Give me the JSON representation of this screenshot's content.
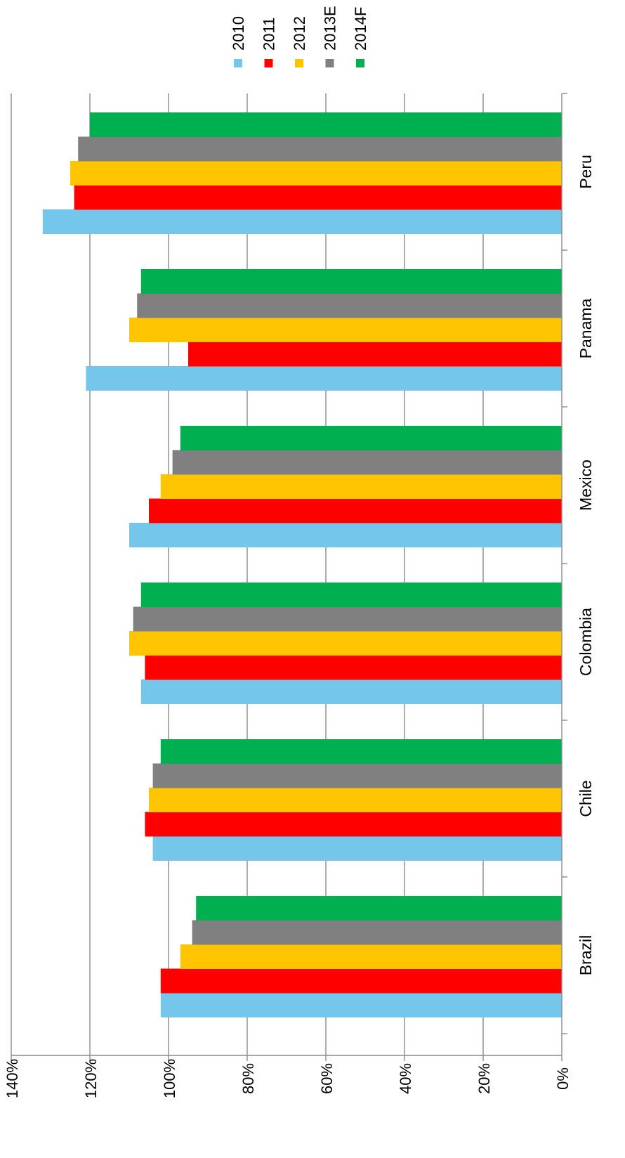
{
  "chart_data": {
    "type": "bar",
    "orientation": "horizontal",
    "categories": [
      "Peru",
      "Panama",
      "Mexico",
      "Colombia",
      "Chile",
      "Brazil"
    ],
    "series": [
      {
        "name": "2010",
        "color": "#74C7EB",
        "values": [
          132,
          121,
          110,
          107,
          104,
          102
        ]
      },
      {
        "name": "2011",
        "color": "#FF0000",
        "values": [
          124,
          95,
          105,
          106,
          106,
          102
        ]
      },
      {
        "name": "2012",
        "color": "#FFC600",
        "values": [
          125,
          110,
          102,
          110,
          105,
          97
        ]
      },
      {
        "name": "2013E",
        "color": "#808080",
        "values": [
          123,
          108,
          99,
          109,
          104,
          94
        ]
      },
      {
        "name": "2014F",
        "color": "#00B050",
        "values": [
          120,
          107,
          97,
          107,
          102,
          93
        ]
      }
    ],
    "value_ticks": [
      "0%",
      "20%",
      "40%",
      "60%",
      "80%",
      "100%",
      "120%",
      "140%"
    ],
    "xlim": [
      0,
      140
    ],
    "grid": true,
    "legend_position": "top-right",
    "rotation": "chart rotated 90 degrees clockwise"
  }
}
